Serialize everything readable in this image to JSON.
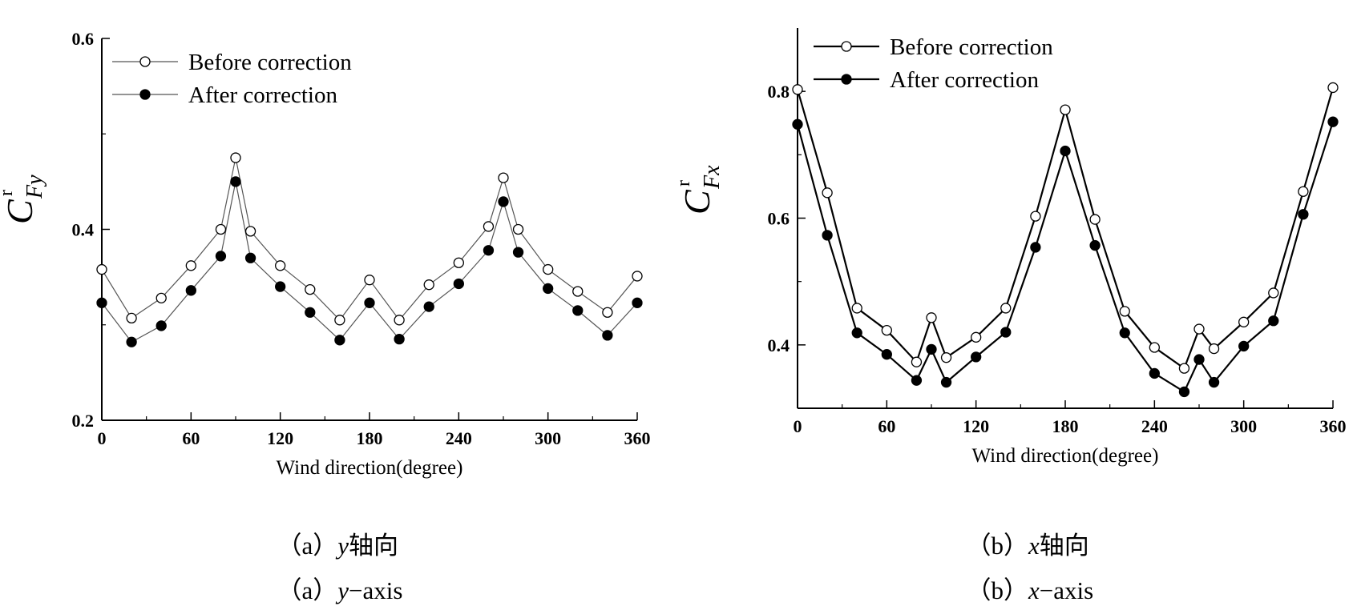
{
  "chart_data": [
    {
      "type": "line",
      "panel": "a",
      "xlabel": "Wind direction(degree)",
      "ylabel": {
        "main": "C",
        "superscript": "r",
        "subscript": "Fy"
      },
      "xlim": [
        0,
        360
      ],
      "ylim": [
        0.2,
        0.6
      ],
      "xticks": [
        "0",
        "60",
        "120",
        "180",
        "240",
        "300",
        "360"
      ],
      "yticks": [
        "0.2",
        "0.4",
        "0.6"
      ],
      "legend_position": "top-left",
      "grid": false,
      "x": [
        0,
        20,
        40,
        60,
        80,
        90,
        100,
        120,
        140,
        160,
        180,
        200,
        220,
        240,
        260,
        270,
        280,
        300,
        320,
        340,
        360
      ],
      "series": [
        {
          "name": "Before correction",
          "marker": "open-circle",
          "values": [
            0.358,
            0.307,
            0.328,
            0.362,
            0.4,
            0.475,
            0.398,
            0.362,
            0.337,
            0.305,
            0.347,
            0.305,
            0.342,
            0.365,
            0.403,
            0.454,
            0.4,
            0.358,
            0.335,
            0.313,
            0.351
          ]
        },
        {
          "name": "After correction",
          "marker": "filled-circle",
          "values": [
            0.323,
            0.282,
            0.299,
            0.336,
            0.372,
            0.45,
            0.37,
            0.34,
            0.313,
            0.284,
            0.323,
            0.285,
            0.319,
            0.343,
            0.378,
            0.429,
            0.376,
            0.338,
            0.315,
            0.289,
            0.323
          ]
        }
      ],
      "style": {
        "line_color": "#555555",
        "line_width": 1.2
      }
    },
    {
      "type": "line",
      "panel": "b",
      "xlabel": "Wind direction(degree)",
      "ylabel": {
        "main": "C",
        "superscript": "r",
        "subscript": "Fx"
      },
      "xlim": [
        0,
        360
      ],
      "ylim": [
        0.3,
        0.9
      ],
      "xticks": [
        "0",
        "60",
        "120",
        "180",
        "240",
        "300",
        "360"
      ],
      "yticks": [
        "0.4",
        "0.6",
        "0.8"
      ],
      "legend_position": "top-left",
      "grid": false,
      "x": [
        0,
        20,
        40,
        60,
        80,
        90,
        100,
        120,
        140,
        160,
        180,
        200,
        220,
        240,
        260,
        270,
        280,
        300,
        320,
        340,
        360
      ],
      "series": [
        {
          "name": "Before correction",
          "marker": "open-circle",
          "values": [
            0.803,
            0.64,
            0.458,
            0.423,
            0.373,
            0.443,
            0.38,
            0.412,
            0.458,
            0.603,
            0.771,
            0.598,
            0.453,
            0.396,
            0.363,
            0.425,
            0.394,
            0.436,
            0.482,
            0.642,
            0.806
          ]
        },
        {
          "name": "After correction",
          "marker": "filled-circle",
          "values": [
            0.748,
            0.573,
            0.419,
            0.385,
            0.344,
            0.393,
            0.341,
            0.381,
            0.42,
            0.554,
            0.706,
            0.557,
            0.419,
            0.355,
            0.326,
            0.377,
            0.341,
            0.398,
            0.438,
            0.606,
            0.752
          ]
        }
      ],
      "style": {
        "line_color": "#000000",
        "line_width": 2.2
      }
    }
  ],
  "captions": {
    "a_cn": {
      "label": "（a）",
      "var": "y",
      "text": "轴向"
    },
    "a_en": {
      "label": "（a）",
      "var": "y",
      "text": "−axis"
    },
    "b_cn": {
      "label": "（b）",
      "var": "x",
      "text": "轴向"
    },
    "b_en": {
      "label": "（b）",
      "var": "x",
      "text": "−axis"
    }
  }
}
